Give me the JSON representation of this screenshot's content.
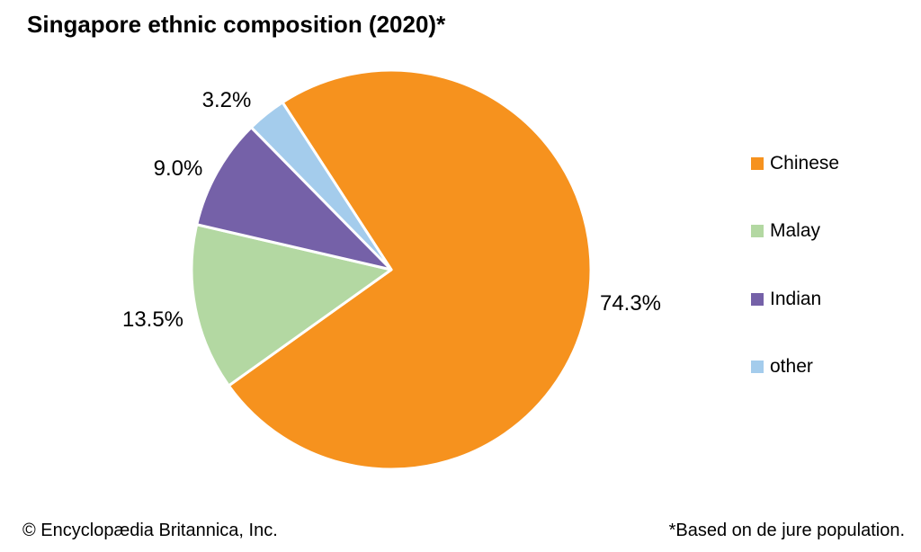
{
  "title": "Singapore ethnic composition (2020)*",
  "footer": {
    "left": "© Encyclopædia Britannica, Inc.",
    "right": "*Based on de jure population."
  },
  "chart_data": {
    "type": "pie",
    "title": "Singapore ethnic composition (2020)*",
    "series": [
      {
        "name": "Chinese",
        "value": 74.3,
        "label": "74.3%",
        "color": "#F6921E"
      },
      {
        "name": "Malay",
        "value": 13.5,
        "label": "13.5%",
        "color": "#B3D8A2"
      },
      {
        "name": "Indian",
        "value": 9.0,
        "label": "9.0%",
        "color": "#7561A8"
      },
      {
        "name": "other",
        "value": 3.2,
        "label": "3.2%",
        "color": "#A4CCEC"
      }
    ],
    "start_angle_deg": -33,
    "direction": "clockwise",
    "legend_position": "right",
    "slice_label_format": "percent",
    "slice_separator_color": "#ffffff",
    "background_color": "#ffffff",
    "footnote": "*Based on de jure population.",
    "source": "© Encyclopædia Britannica, Inc."
  }
}
